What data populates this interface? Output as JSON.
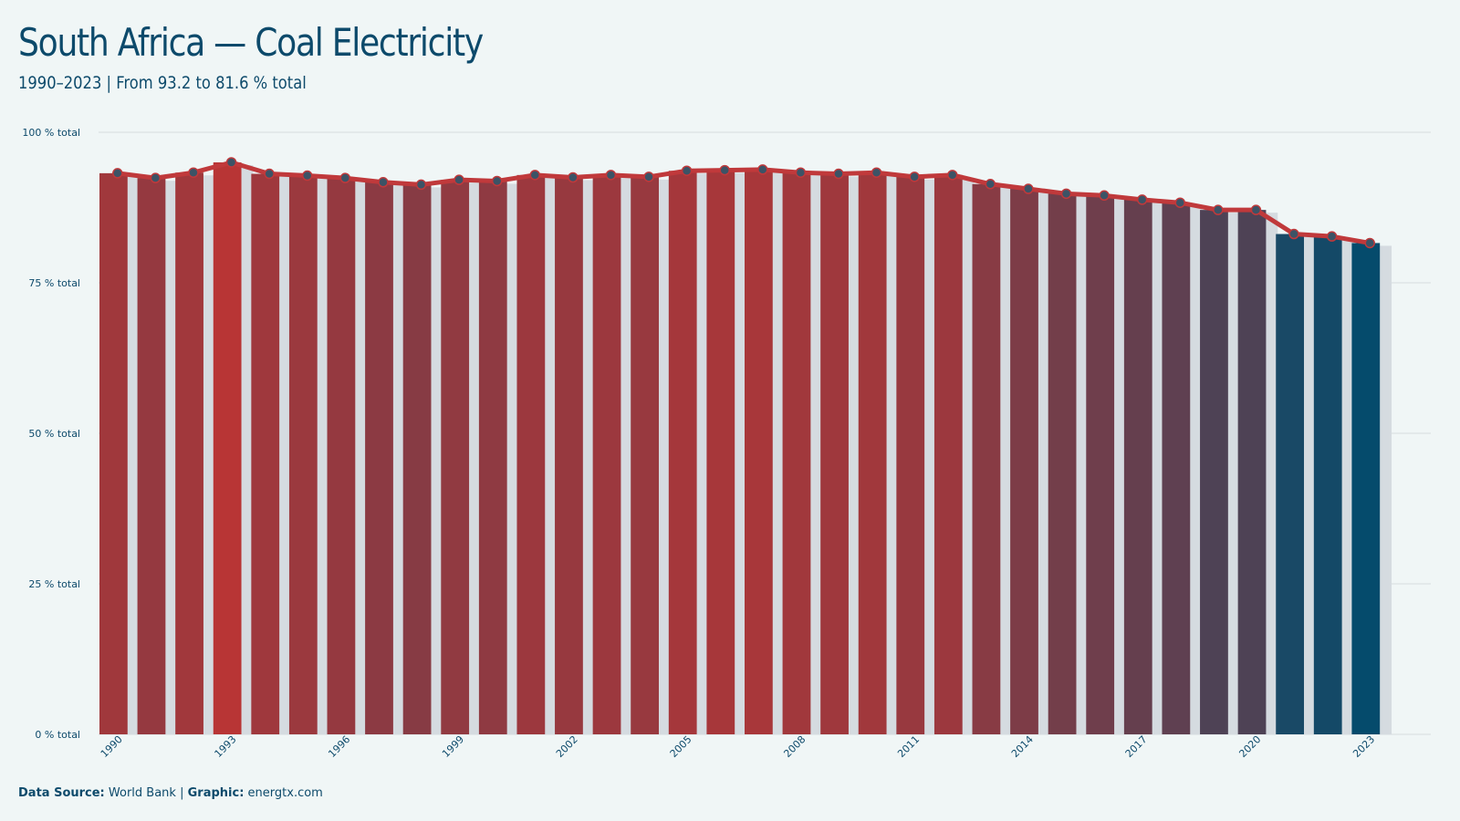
{
  "title": "South Africa — Coal Electricity",
  "subtitle": "1990–2023 | From 93.2 to 81.6 % total",
  "footer": {
    "source_label": "Data Source:",
    "source_value": "World Bank",
    "separator": "|",
    "graphic_label": "Graphic:",
    "graphic_value": "energtx.com"
  },
  "colors": {
    "background": "#f0f6f6",
    "text": "#0d4a6b",
    "line": "#c0393b",
    "bar_high": "#b83535",
    "bar_low": "#054b6c",
    "shadow_bar": "#d5dbe0",
    "grid": "#d6dcdf",
    "marker": "#3c5366"
  },
  "chart_data": {
    "type": "bar",
    "x": [
      1990,
      1991,
      1992,
      1993,
      1994,
      1995,
      1996,
      1997,
      1998,
      1999,
      2000,
      2001,
      2002,
      2003,
      2004,
      2005,
      2006,
      2007,
      2008,
      2009,
      2010,
      2011,
      2012,
      2013,
      2014,
      2015,
      2016,
      2017,
      2018,
      2019,
      2020,
      2021,
      2022,
      2023
    ],
    "x_tick_labels": [
      "1990",
      "1993",
      "1996",
      "1999",
      "2002",
      "2005",
      "2008",
      "2011",
      "2014",
      "2017",
      "2020",
      "2023"
    ],
    "series": [
      {
        "values": [
          93.2,
          92.4,
          93.3,
          95.0,
          93.1,
          92.8,
          92.4,
          91.7,
          91.3,
          92.1,
          91.9,
          92.9,
          92.5,
          92.9,
          92.6,
          93.6,
          93.7,
          93.8,
          93.3,
          93.1,
          93.3,
          92.6,
          92.9,
          91.4,
          90.6,
          89.8,
          89.5,
          88.8,
          88.3,
          87.1,
          87.1,
          83.1,
          82.7,
          81.6
        ]
      }
    ],
    "overlay": "line with markers over bars, same values",
    "y_tick_labels": [
      "0 % total",
      "25 % total",
      "50 % total",
      "75 % total",
      "100 % total"
    ],
    "y_ticks": [
      0,
      25,
      50,
      75,
      100
    ],
    "ylim": [
      0,
      100
    ],
    "xlabel": "",
    "ylabel": "",
    "grid": "horizontal",
    "legend": "none"
  }
}
